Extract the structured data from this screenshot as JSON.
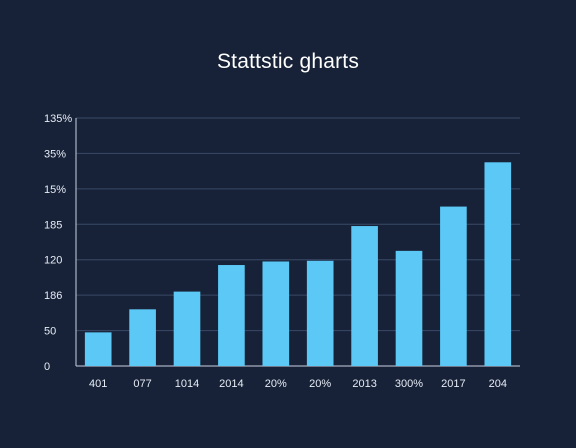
{
  "chart_data": {
    "type": "bar",
    "title": "Stattstic gharts",
    "xlabel": "",
    "ylabel": "",
    "y_tick_labels": [
      "0",
      "50",
      "186",
      "120",
      "185",
      "15%",
      "35%",
      "135%"
    ],
    "categories": [
      "401",
      "077",
      "1014",
      "2014",
      "20%",
      "20%",
      "2013",
      "300%",
      "2017",
      "204"
    ],
    "values": [
      0.95,
      1.6,
      2.1,
      2.85,
      2.95,
      2.97,
      3.95,
      3.25,
      4.5,
      5.75
    ],
    "ylim": [
      0,
      7
    ],
    "grid": true,
    "bar_color": "#5bc8f5",
    "grid_color": "#3a4a66",
    "axis_color": "#c9d3e0",
    "background": "#172238"
  }
}
